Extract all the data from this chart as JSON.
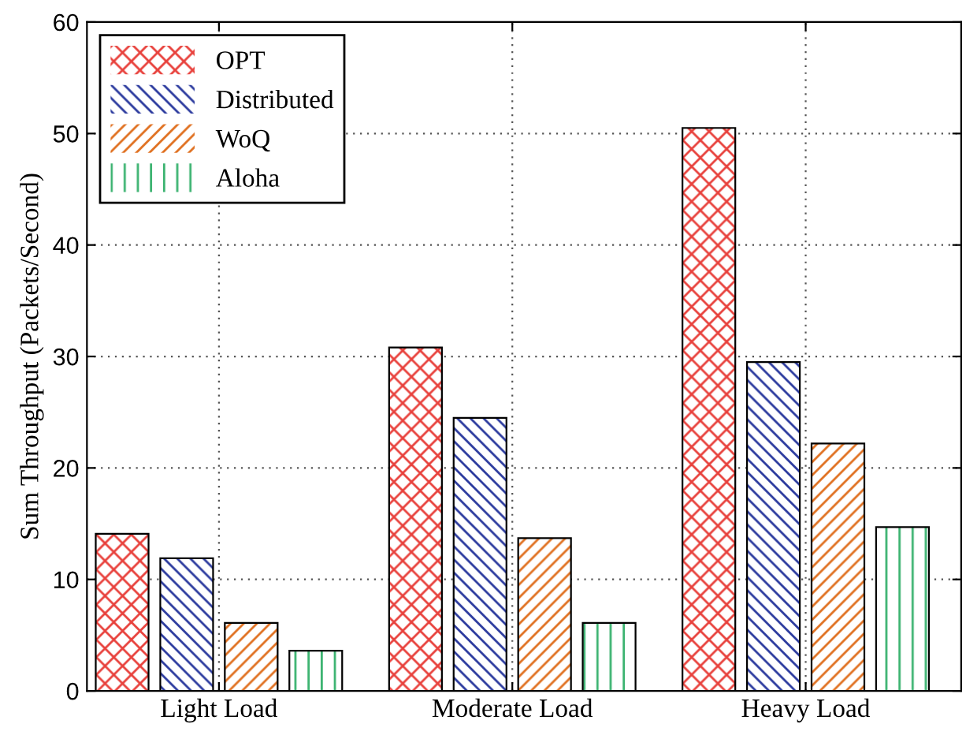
{
  "chart_data": {
    "type": "bar",
    "ylabel": "Sum Throughput (Packets/Second)",
    "categories": [
      "Light Load",
      "Moderate Load",
      "Heavy Load"
    ],
    "series": [
      {
        "name": "OPT",
        "color": "#e8413c",
        "values": [
          14.1,
          30.8,
          50.5
        ]
      },
      {
        "name": "Distributed",
        "color": "#2b3a9e",
        "values": [
          11.9,
          24.5,
          29.5
        ]
      },
      {
        "name": "WoQ",
        "color": "#e07020",
        "values": [
          6.1,
          13.7,
          22.2
        ]
      },
      {
        "name": "Aloha",
        "color": "#3cb371",
        "values": [
          3.6,
          6.1,
          14.7
        ]
      }
    ],
    "ylim": [
      0,
      60
    ],
    "yticks": [
      0,
      10,
      20,
      30,
      40,
      50,
      60
    ],
    "grid": true,
    "legend": "top left"
  }
}
